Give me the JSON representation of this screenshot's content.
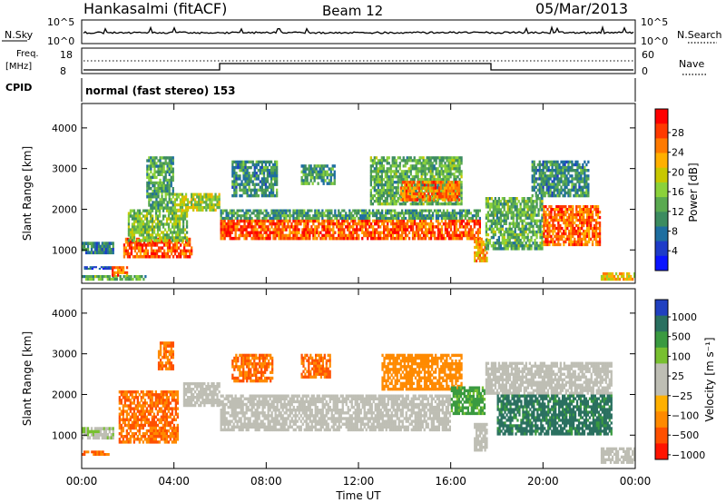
{
  "header": {
    "station": "Hankasalmi (fitACF)",
    "beam": "Beam 12",
    "date": "05/Mar/2013"
  },
  "noise_panel": {
    "left_label": "N.Sky",
    "left_ticks": [
      "10^5",
      "10^0"
    ],
    "right_ticks": [
      "10^5",
      "10^0"
    ],
    "right_label": "N.Search"
  },
  "freq_panel": {
    "left_label_1": "Freq.",
    "left_label_2": "[MHz]",
    "left_ticks": [
      "18",
      "8"
    ],
    "right_ticks": [
      "60",
      "0"
    ],
    "right_label": "Nave"
  },
  "cpid_panel": {
    "label": "CPID",
    "text": "normal (fast stereo) 153"
  },
  "axes": {
    "xlabel": "Time UT",
    "x_ticks": [
      "00:00",
      "04:00",
      "08:00",
      "12:00",
      "16:00",
      "20:00",
      "00:00"
    ],
    "ylabel": "Slant Range [km]",
    "y_ticks": [
      "1000",
      "2000",
      "3000",
      "4000"
    ]
  },
  "power_colorbar": {
    "label": "Power [dB]",
    "ticks": [
      "28",
      "24",
      "20",
      "16",
      "12",
      "8",
      "4"
    ],
    "colors": [
      "#ff0000",
      "#ff3a00",
      "#ff7a00",
      "#ffb000",
      "#c8c800",
      "#8bd23a",
      "#5aaa50",
      "#3c8c60",
      "#1e6ea0",
      "#1e3cc8",
      "#0a14ff"
    ]
  },
  "velocity_colorbar": {
    "label": "Velocity [m s⁻¹]",
    "ticks": [
      "1000",
      "500",
      "100",
      "25",
      "−25",
      "−100",
      "−500",
      "−1000"
    ],
    "colors": [
      "#2040c0",
      "#2a7060",
      "#3a9a40",
      "#78c030",
      "#bebeb4",
      "#bebeb4",
      "#ffb000",
      "#ff8a00",
      "#ff5000",
      "#ff1400"
    ]
  },
  "chart_data": [
    {
      "type": "heatmap",
      "title": "Power",
      "xlabel": "Time UT",
      "ylabel": "Slant Range [km]",
      "xlim": [
        0,
        24
      ],
      "ylim": [
        180,
        4600
      ],
      "colorbar_label": "Power [dB]",
      "colorbar_range": [
        0,
        30
      ],
      "regions": [
        {
          "t0": 0.0,
          "t1": 1.4,
          "r0": 900,
          "r1": 1200,
          "value": 8
        },
        {
          "t0": 0.1,
          "t1": 1.3,
          "r0": 520,
          "r1": 600,
          "value": 5
        },
        {
          "t0": 0.0,
          "t1": 2.8,
          "r0": 250,
          "r1": 380,
          "value": 12
        },
        {
          "t0": 1.3,
          "t1": 2.0,
          "r0": 350,
          "r1": 600,
          "value": 24
        },
        {
          "t0": 1.8,
          "t1": 4.8,
          "r0": 800,
          "r1": 1300,
          "value": 26
        },
        {
          "t0": 2.0,
          "t1": 4.6,
          "r0": 1200,
          "r1": 2000,
          "value": 14
        },
        {
          "t0": 2.8,
          "t1": 4.0,
          "r0": 2000,
          "r1": 3300,
          "value": 11
        },
        {
          "t0": 4.0,
          "t1": 6.0,
          "r0": 1950,
          "r1": 2400,
          "value": 16
        },
        {
          "t0": 6.0,
          "t1": 17.3,
          "r0": 1250,
          "r1": 1750,
          "value": 26
        },
        {
          "t0": 6.0,
          "t1": 17.3,
          "r0": 1750,
          "r1": 2000,
          "value": 10
        },
        {
          "t0": 6.5,
          "t1": 8.5,
          "r0": 2300,
          "r1": 3200,
          "value": 9
        },
        {
          "t0": 9.5,
          "t1": 11.0,
          "r0": 2600,
          "r1": 3100,
          "value": 10
        },
        {
          "t0": 12.5,
          "t1": 16.5,
          "r0": 2100,
          "r1": 3300,
          "value": 12
        },
        {
          "t0": 13.8,
          "t1": 16.4,
          "r0": 2200,
          "r1": 2700,
          "value": 24
        },
        {
          "t0": 17.0,
          "t1": 17.6,
          "r0": 700,
          "r1": 1300,
          "value": 22
        },
        {
          "t0": 17.5,
          "t1": 20.0,
          "r0": 1000,
          "r1": 2300,
          "value": 12
        },
        {
          "t0": 20.0,
          "t1": 22.5,
          "r0": 1100,
          "r1": 2100,
          "value": 25
        },
        {
          "t0": 19.5,
          "t1": 22.0,
          "r0": 2300,
          "r1": 3200,
          "value": 9
        },
        {
          "t0": 22.5,
          "t1": 24.0,
          "r0": 250,
          "r1": 450,
          "value": 20
        }
      ]
    },
    {
      "type": "heatmap",
      "title": "Velocity",
      "xlabel": "Time UT",
      "ylabel": "Slant Range [km]",
      "xlim": [
        0,
        24
      ],
      "ylim": [
        180,
        4600
      ],
      "colorbar_label": "Velocity [m s⁻¹]",
      "colorbar_range": [
        -1000,
        1000
      ],
      "regions": [
        {
          "t0": 0.0,
          "t1": 1.4,
          "r0": 900,
          "r1": 1200,
          "value": 20
        },
        {
          "t0": 0.0,
          "t1": 1.2,
          "r0": 500,
          "r1": 620,
          "value": -300
        },
        {
          "t0": 1.6,
          "t1": 4.2,
          "r0": 800,
          "r1": 2100,
          "value": -300
        },
        {
          "t0": 3.3,
          "t1": 4.0,
          "r0": 2600,
          "r1": 3300,
          "value": -300
        },
        {
          "t0": 4.4,
          "t1": 6.0,
          "r0": 1700,
          "r1": 2300,
          "value": 0
        },
        {
          "t0": 6.0,
          "t1": 16.0,
          "r0": 1100,
          "r1": 2000,
          "value": 0
        },
        {
          "t0": 6.5,
          "t1": 8.3,
          "r0": 2300,
          "r1": 3000,
          "value": -300
        },
        {
          "t0": 9.5,
          "t1": 10.8,
          "r0": 2400,
          "r1": 3000,
          "value": -300
        },
        {
          "t0": 13.0,
          "t1": 16.5,
          "r0": 2100,
          "r1": 3000,
          "value": -200
        },
        {
          "t0": 16.0,
          "t1": 17.5,
          "r0": 1500,
          "r1": 2200,
          "value": 80
        },
        {
          "t0": 17.0,
          "t1": 17.6,
          "r0": 600,
          "r1": 1300,
          "value": 0
        },
        {
          "t0": 17.5,
          "t1": 23.0,
          "r0": 2000,
          "r1": 2800,
          "value": 0
        },
        {
          "t0": 18.0,
          "t1": 23.0,
          "r0": 1000,
          "r1": 2000,
          "value": 400
        },
        {
          "t0": 22.5,
          "t1": 24.0,
          "r0": 300,
          "r1": 700,
          "value": 0
        }
      ]
    }
  ]
}
